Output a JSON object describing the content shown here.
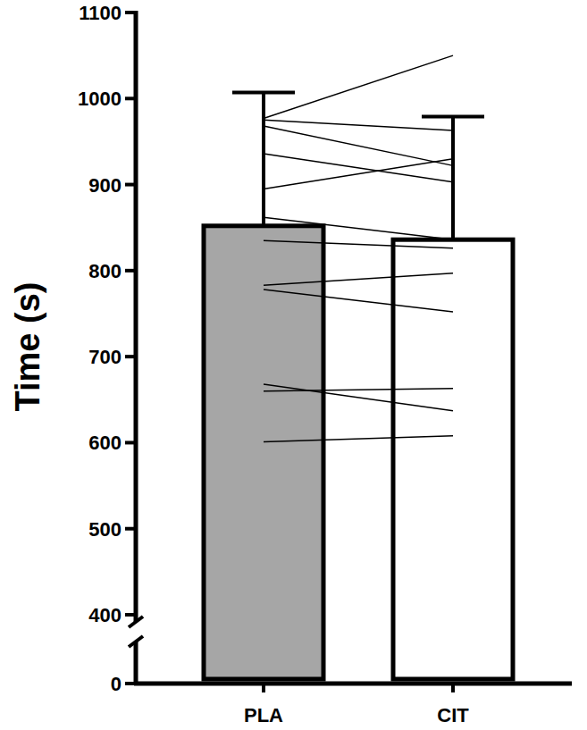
{
  "chart_data": {
    "type": "bar",
    "y_label": "Time (s)",
    "categories": [
      "PLA",
      "CIT"
    ],
    "values": [
      852,
      836
    ],
    "error": [
      155,
      143
    ],
    "colors": [
      "#a6a6a6",
      "#ffffff"
    ],
    "individuals": [
      [
        977,
        1050
      ],
      [
        975,
        963
      ],
      [
        968,
        922
      ],
      [
        936,
        903
      ],
      [
        895,
        930
      ],
      [
        862,
        836
      ],
      [
        835,
        826
      ],
      [
        783,
        797
      ],
      [
        778,
        752
      ],
      [
        668,
        637
      ],
      [
        660,
        663
      ],
      [
        601,
        608
      ]
    ],
    "ylim": [
      0,
      1100
    ],
    "yticks": [
      0,
      400,
      500,
      600,
      700,
      800,
      900,
      1000,
      1100
    ]
  }
}
